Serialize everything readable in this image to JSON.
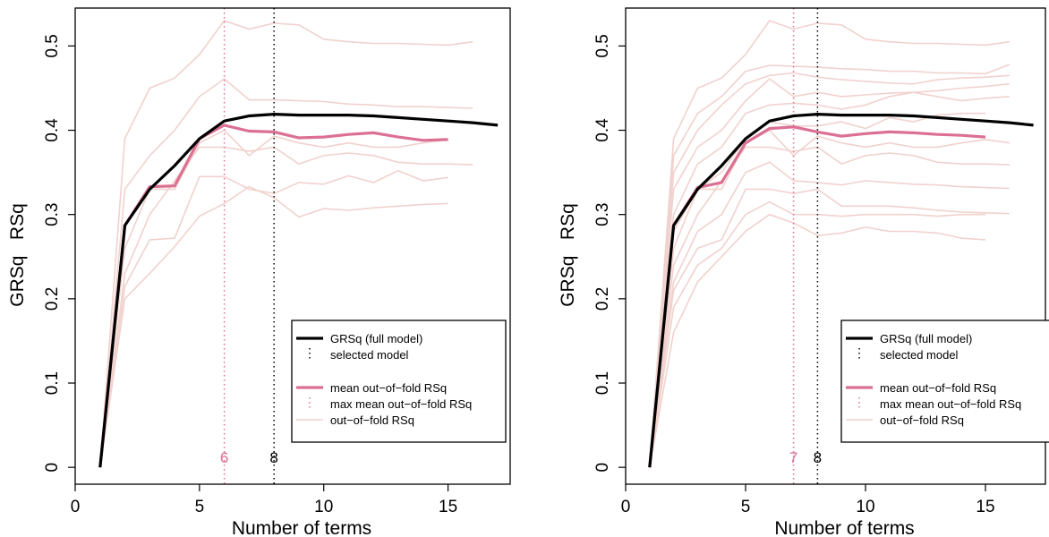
{
  "chart_data": [
    {
      "type": "line",
      "title": "",
      "xlabel": "Number of terms",
      "ylabel": "GRSq   RSq",
      "xlim": [
        0,
        17.5
      ],
      "ylim": [
        -0.02,
        0.545
      ],
      "xticks": [
        0,
        5,
        10,
        15
      ],
      "yticks": [
        0,
        0.1,
        0.2,
        0.3,
        0.4,
        0.5
      ],
      "xtick_labels": [
        "0",
        "5",
        "10",
        "15"
      ],
      "ytick_labels": [
        "0",
        "0.1",
        "0.2",
        "0.3",
        "0.4",
        "0.5"
      ],
      "grid": false,
      "legend_placement": "bottom-right",
      "legend": {
        "full_model": "GRSq (full model)",
        "selected": "selected model",
        "mean_oof": "mean out−of−fold RSq",
        "max_mean_oof": "max mean out−of−fold RSq",
        "oof": "out−of−fold RSq"
      },
      "vlines": [
        {
          "x": 6,
          "label": "6",
          "kind": "max_mean_oof"
        },
        {
          "x": 8,
          "label": "8",
          "kind": "selected"
        }
      ],
      "series": [
        {
          "name": "GRSq (full model)",
          "role": "full",
          "x": [
            1,
            2,
            3,
            4,
            5,
            6,
            7,
            8,
            9,
            10,
            11,
            12,
            13,
            14,
            15,
            16,
            17
          ],
          "values": [
            0,
            0.287,
            0.33,
            0.358,
            0.39,
            0.411,
            0.417,
            0.419,
            0.418,
            0.418,
            0.418,
            0.417,
            0.415,
            0.413,
            0.411,
            0.409,
            0.406
          ]
        },
        {
          "name": "mean out−of−fold RSq",
          "role": "mean",
          "x": [
            1,
            2,
            3,
            4,
            5,
            6,
            7,
            8,
            9,
            10,
            11,
            12,
            13,
            14,
            15
          ],
          "values": [
            0,
            0.287,
            0.333,
            0.334,
            0.39,
            0.406,
            0.399,
            0.398,
            0.391,
            0.392,
            0.395,
            0.397,
            0.392,
            0.388,
            0.389
          ]
        },
        {
          "role": "fold",
          "x": [
            1,
            2,
            3,
            4,
            5,
            6,
            7,
            8,
            9,
            10,
            11,
            12,
            13,
            14,
            15,
            16
          ],
          "values": [
            0,
            0.39,
            0.45,
            0.462,
            0.49,
            0.53,
            0.52,
            0.527,
            0.525,
            0.508,
            0.505,
            0.503,
            0.503,
            0.502,
            0.501,
            0.505
          ]
        },
        {
          "role": "fold",
          "x": [
            1,
            2,
            3,
            4,
            5,
            6,
            7,
            8,
            9,
            10,
            11,
            12,
            13,
            14,
            15,
            16
          ],
          "values": [
            0,
            0.33,
            0.37,
            0.4,
            0.44,
            0.461,
            0.436,
            0.436,
            0.435,
            0.434,
            0.431,
            0.43,
            0.428,
            0.428,
            0.427,
            0.426
          ]
        },
        {
          "role": "fold",
          "x": [
            1,
            2,
            3,
            4,
            5,
            6,
            7,
            8,
            9,
            10,
            11,
            12,
            13,
            14,
            15
          ],
          "values": [
            0,
            0.26,
            0.33,
            0.33,
            0.385,
            0.4,
            0.37,
            0.393,
            0.385,
            0.38,
            0.385,
            0.38,
            0.38,
            0.385,
            0.389
          ]
        },
        {
          "role": "fold",
          "x": [
            1,
            2,
            3,
            4,
            5,
            6,
            7,
            8,
            9,
            10,
            11,
            12,
            13,
            14,
            15,
            16
          ],
          "values": [
            0,
            0.23,
            0.3,
            0.34,
            0.38,
            0.38,
            0.375,
            0.38,
            0.36,
            0.37,
            0.373,
            0.37,
            0.362,
            0.36,
            0.36,
            0.359
          ]
        },
        {
          "role": "fold",
          "x": [
            1,
            2,
            3,
            4,
            5,
            6,
            7,
            8,
            9,
            10,
            11,
            12,
            13,
            14,
            15
          ],
          "values": [
            0,
            0.215,
            0.27,
            0.272,
            0.345,
            0.345,
            0.33,
            0.325,
            0.338,
            0.336,
            0.346,
            0.338,
            0.352,
            0.34,
            0.344
          ]
        },
        {
          "role": "fold",
          "x": [
            1,
            2,
            3,
            4,
            5,
            6,
            7,
            8,
            9,
            10,
            11,
            12,
            13,
            14,
            15
          ],
          "values": [
            0,
            0.2,
            0.23,
            0.262,
            0.298,
            0.313,
            0.333,
            0.32,
            0.297,
            0.307,
            0.305,
            0.308,
            0.31,
            0.312,
            0.313
          ]
        }
      ]
    },
    {
      "type": "line",
      "title": "",
      "xlabel": "Number of terms",
      "ylabel": "GRSq   RSq",
      "xlim": [
        0,
        17.5
      ],
      "ylim": [
        -0.02,
        0.545
      ],
      "xticks": [
        0,
        5,
        10,
        15
      ],
      "yticks": [
        0,
        0.1,
        0.2,
        0.3,
        0.4,
        0.5
      ],
      "xtick_labels": [
        "0",
        "5",
        "10",
        "15"
      ],
      "ytick_labels": [
        "0",
        "0.1",
        "0.2",
        "0.3",
        "0.4",
        "0.5"
      ],
      "grid": false,
      "legend_placement": "bottom-right",
      "legend": {
        "full_model": "GRSq (full model)",
        "selected": "selected model",
        "mean_oof": "mean out−of−fold RSq",
        "max_mean_oof": "max mean out−of−fold RSq",
        "oof": "out−of−fold RSq"
      },
      "vlines": [
        {
          "x": 7,
          "label": "7",
          "kind": "max_mean_oof"
        },
        {
          "x": 8,
          "label": "8",
          "kind": "selected"
        }
      ],
      "series": [
        {
          "name": "GRSq (full model)",
          "role": "full",
          "x": [
            1,
            2,
            3,
            4,
            5,
            6,
            7,
            8,
            9,
            10,
            11,
            12,
            13,
            14,
            15,
            16,
            17
          ],
          "values": [
            0,
            0.287,
            0.33,
            0.358,
            0.39,
            0.411,
            0.417,
            0.419,
            0.418,
            0.418,
            0.418,
            0.417,
            0.415,
            0.413,
            0.411,
            0.409,
            0.406
          ]
        },
        {
          "name": "mean out−of−fold RSq",
          "role": "mean",
          "x": [
            1,
            2,
            3,
            4,
            5,
            6,
            7,
            8,
            9,
            10,
            11,
            12,
            13,
            14,
            15
          ],
          "values": [
            0,
            0.287,
            0.332,
            0.338,
            0.385,
            0.402,
            0.404,
            0.398,
            0.393,
            0.396,
            0.398,
            0.397,
            0.395,
            0.394,
            0.392
          ]
        },
        {
          "role": "fold",
          "x": [
            1,
            2,
            3,
            4,
            5,
            6,
            7,
            8,
            9,
            10,
            11,
            12,
            13,
            14,
            15,
            16
          ],
          "values": [
            0,
            0.39,
            0.45,
            0.462,
            0.49,
            0.53,
            0.52,
            0.527,
            0.525,
            0.508,
            0.505,
            0.503,
            0.503,
            0.502,
            0.501,
            0.505
          ]
        },
        {
          "role": "fold",
          "x": [
            1,
            2,
            3,
            4,
            5,
            6,
            7,
            8,
            9,
            10,
            11,
            12,
            13,
            14,
            15,
            16
          ],
          "values": [
            0,
            0.37,
            0.42,
            0.44,
            0.47,
            0.477,
            0.476,
            0.475,
            0.473,
            0.472,
            0.47,
            0.47,
            0.468,
            0.468,
            0.467,
            0.478
          ]
        },
        {
          "role": "fold",
          "x": [
            1,
            2,
            3,
            4,
            5,
            6,
            7,
            8,
            9,
            10,
            11,
            12,
            13,
            14,
            15,
            16
          ],
          "values": [
            0,
            0.35,
            0.4,
            0.43,
            0.455,
            0.465,
            0.468,
            0.463,
            0.46,
            0.458,
            0.456,
            0.455,
            0.46,
            0.462,
            0.463,
            0.465
          ]
        },
        {
          "role": "fold",
          "x": [
            1,
            2,
            3,
            4,
            5,
            6,
            7,
            8,
            9,
            10,
            11,
            12,
            13,
            14,
            15,
            16
          ],
          "values": [
            0,
            0.33,
            0.38,
            0.4,
            0.435,
            0.461,
            0.44,
            0.445,
            0.44,
            0.442,
            0.444,
            0.445,
            0.447,
            0.45,
            0.452,
            0.455
          ]
        },
        {
          "role": "fold",
          "x": [
            1,
            2,
            3,
            4,
            5,
            6,
            7,
            8,
            9,
            10,
            11,
            12,
            13,
            14,
            15,
            16
          ],
          "values": [
            0,
            0.3,
            0.36,
            0.38,
            0.42,
            0.43,
            0.432,
            0.43,
            0.425,
            0.43,
            0.44,
            0.445,
            0.44,
            0.435,
            0.438,
            0.44
          ]
        },
        {
          "role": "fold",
          "x": [
            1,
            2,
            3,
            4,
            5,
            6,
            7,
            8,
            9,
            10,
            11,
            12,
            13,
            14,
            15
          ],
          "values": [
            0,
            0.28,
            0.33,
            0.35,
            0.39,
            0.41,
            0.405,
            0.405,
            0.41,
            0.402,
            0.415,
            0.41,
            0.418,
            0.42,
            0.42
          ]
        },
        {
          "role": "fold",
          "x": [
            1,
            2,
            3,
            4,
            5,
            6,
            7,
            8,
            9,
            10,
            11,
            12,
            13,
            14,
            15,
            16
          ],
          "values": [
            0,
            0.26,
            0.33,
            0.33,
            0.385,
            0.4,
            0.37,
            0.393,
            0.385,
            0.38,
            0.385,
            0.38,
            0.38,
            0.385,
            0.389,
            0.385
          ]
        },
        {
          "role": "fold",
          "x": [
            1,
            2,
            3,
            4,
            5,
            6,
            7,
            8,
            9,
            10,
            11,
            12,
            13,
            14,
            15,
            16
          ],
          "values": [
            0,
            0.24,
            0.3,
            0.34,
            0.38,
            0.38,
            0.375,
            0.38,
            0.36,
            0.37,
            0.373,
            0.37,
            0.362,
            0.36,
            0.36,
            0.359
          ]
        },
        {
          "role": "fold",
          "x": [
            1,
            2,
            3,
            4,
            5,
            6,
            7,
            8,
            9,
            10,
            11,
            12,
            13,
            14,
            15,
            16
          ],
          "values": [
            0,
            0.22,
            0.28,
            0.3,
            0.35,
            0.362,
            0.34,
            0.338,
            0.335,
            0.34,
            0.338,
            0.336,
            0.335,
            0.333,
            0.332,
            0.331
          ]
        },
        {
          "role": "fold",
          "x": [
            1,
            2,
            3,
            4,
            5,
            6,
            7,
            8,
            9,
            10,
            11,
            12,
            13,
            14,
            15,
            16
          ],
          "values": [
            0,
            0.21,
            0.26,
            0.27,
            0.33,
            0.33,
            0.325,
            0.33,
            0.31,
            0.31,
            0.31,
            0.308,
            0.305,
            0.303,
            0.302,
            0.301
          ]
        },
        {
          "role": "fold",
          "x": [
            1,
            2,
            3,
            4,
            5,
            6,
            7,
            8,
            9,
            10,
            11,
            12,
            13,
            14,
            15
          ],
          "values": [
            0,
            0.19,
            0.24,
            0.26,
            0.3,
            0.315,
            0.3,
            0.3,
            0.298,
            0.3,
            0.3,
            0.3,
            0.298,
            0.3,
            0.3
          ]
        },
        {
          "role": "fold",
          "x": [
            1,
            2,
            3,
            4,
            5,
            6,
            7,
            8,
            9,
            10,
            11,
            12,
            13,
            14,
            15
          ],
          "values": [
            0,
            0.16,
            0.22,
            0.25,
            0.28,
            0.3,
            0.29,
            0.275,
            0.278,
            0.285,
            0.28,
            0.28,
            0.278,
            0.272,
            0.27
          ]
        }
      ]
    }
  ],
  "colors": {
    "full": "#000000",
    "mean": "#db7093",
    "fold": "#f0d2ce",
    "max_vline": "#db7093",
    "selected_vline": "#000000"
  }
}
